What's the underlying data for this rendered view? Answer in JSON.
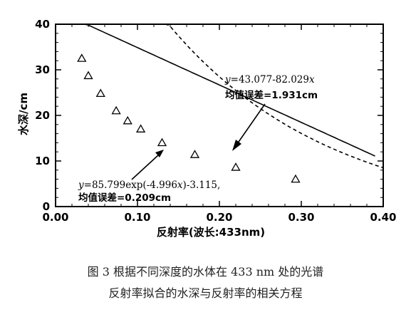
{
  "chart_data": {
    "type": "scatter",
    "xlabel": "反射率(波长:433nm)",
    "ylabel": "水深/cm",
    "xlim": [
      0.0,
      0.4
    ],
    "ylim": [
      0,
      40
    ],
    "xticks": [
      "0.00",
      "0.10",
      "0.20",
      "0.30",
      "0.40"
    ],
    "yticks": [
      "0",
      "10",
      "20",
      "30",
      "40"
    ],
    "points": [
      {
        "x": 0.032,
        "y": 32.5
      },
      {
        "x": 0.04,
        "y": 28.7
      },
      {
        "x": 0.055,
        "y": 24.8
      },
      {
        "x": 0.074,
        "y": 21.0
      },
      {
        "x": 0.088,
        "y": 18.8
      },
      {
        "x": 0.104,
        "y": 17.0
      },
      {
        "x": 0.13,
        "y": 14.0
      },
      {
        "x": 0.17,
        "y": 11.4
      },
      {
        "x": 0.22,
        "y": 8.6
      },
      {
        "x": 0.293,
        "y": 6.0
      }
    ],
    "fits": [
      {
        "kind": "linear",
        "style": "solid",
        "a": 43.077,
        "b": -82.029,
        "x_range": [
          0.035,
          0.39
        ],
        "equation_prefix": "y",
        "equation_body": "=43.077-82.029",
        "equation_var": "x",
        "error_label": "均值误差=1.931cm"
      },
      {
        "kind": "exp",
        "style": "dashed",
        "a": 85.799,
        "k": -4.996,
        "c": -3.115,
        "x_range": [
          0.04,
          0.4
        ],
        "equation_prefix": "y",
        "equation_body": "=85.799exp(-4.996",
        "equation_var": "x",
        "equation_tail": ")-3.115,",
        "error_label": "均值误差=0.209cm"
      }
    ],
    "grid": false
  },
  "caption": {
    "line1": "图 3   根据不同深度的水体在 433 nm 处的光谱",
    "line2": "反射率拟合的水深与反射率的相关方程"
  }
}
